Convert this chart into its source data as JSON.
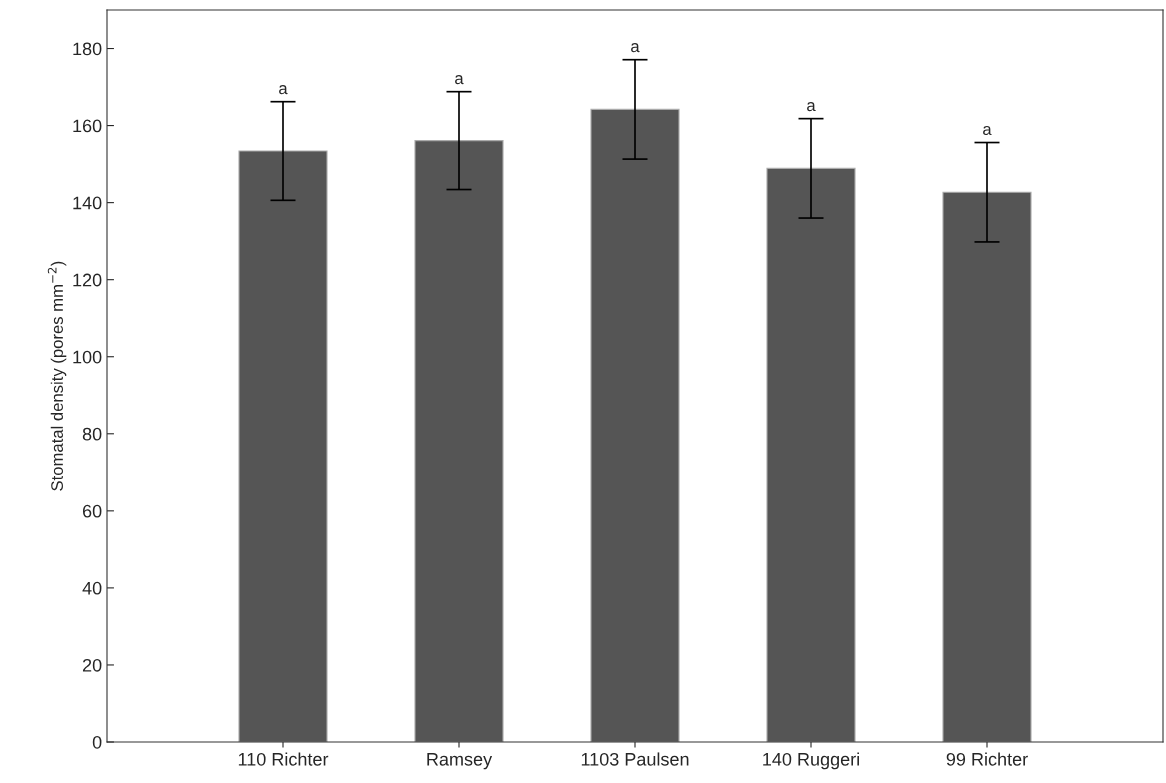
{
  "chart_data": {
    "type": "bar",
    "ylabel": "Stomatal density (pores mm$^{−2}$)",
    "categories": [
      "110 Richter",
      "Ramsey",
      "1103 Paulsen",
      "140 Ruggeri",
      "99 Richter"
    ],
    "values": [
      153.4,
      156.1,
      164.2,
      148.9,
      142.7
    ],
    "errors": [
      12.8,
      12.7,
      12.9,
      12.9,
      12.9
    ],
    "color": "#555555",
    "ylim": [
      0,
      190
    ],
    "yticks": [
      0,
      20,
      40,
      60,
      80,
      100,
      120,
      140,
      160,
      180
    ],
    "grid": false,
    "annotations": [
      {
        "text": "a",
        "x": "110 Richter",
        "y": 166.2
      },
      {
        "text": "a",
        "x": "Ramsey",
        "y": 168.8
      },
      {
        "text": "a",
        "x": "1103 Paulsen",
        "y": 177.1
      },
      {
        "text": "a",
        "x": "140 Ruggeri",
        "y": 161.8
      },
      {
        "text": "a",
        "x": "99 Richter",
        "y": 155.6
      }
    ]
  }
}
